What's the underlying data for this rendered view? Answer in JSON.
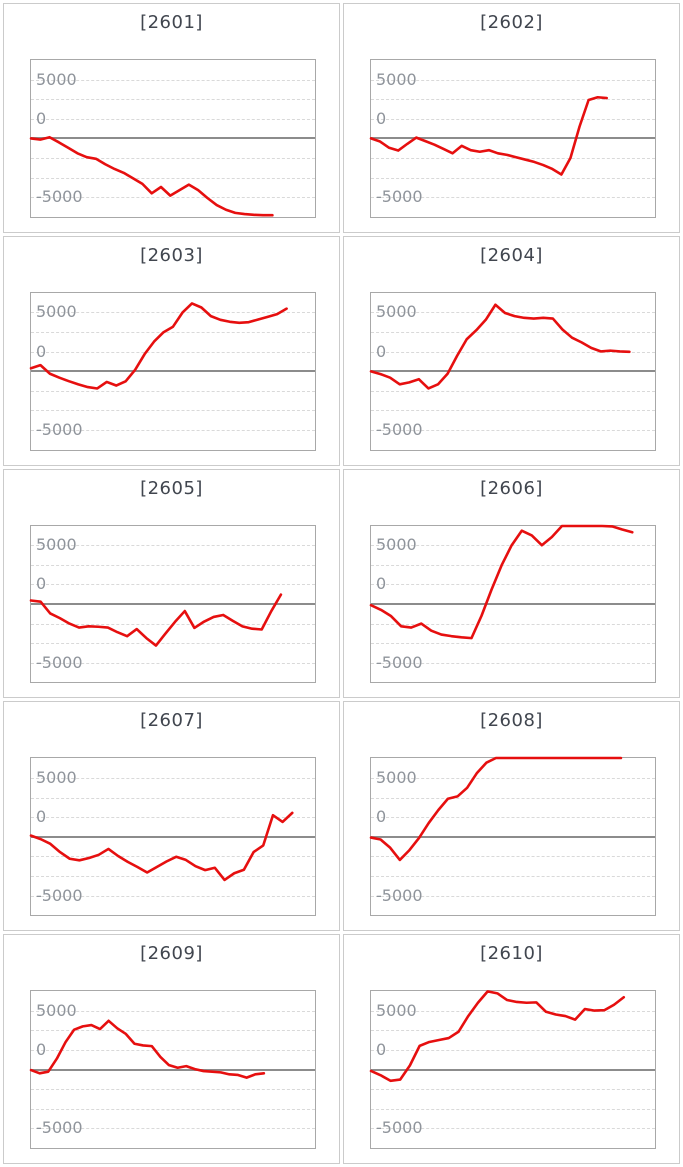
{
  "page": {
    "background": "#ffffff"
  },
  "style": {
    "line_color": "#e60f0f",
    "grid_color": "#d9d9d9",
    "zero_line_color": "#8c8c8c",
    "plot_border_color": "#a8a8a8",
    "panel_border_color": "#cbcbcb",
    "title_color": "#41464f",
    "axis_label_color": "#8f949b"
  },
  "axis": {
    "ylabels": [
      "5000",
      "0",
      "-5000"
    ],
    "ymax": 10000,
    "ymin": -10000,
    "grid_interval": 2500,
    "zero_value": 0,
    "grid": "horizontal-dashed",
    "legend": "none"
  },
  "chart_data": [
    {
      "type": "line",
      "title": "[2601]",
      "machine_no": "2601",
      "x_end_frac": 0.85,
      "values": [
        0,
        -150,
        150,
        -500,
        -1200,
        -1900,
        -2400,
        -2600,
        -3300,
        -3900,
        -4400,
        -5100,
        -5800,
        -7000,
        -6200,
        -7300,
        -6600,
        -5900,
        -6600,
        -7600,
        -8500,
        -9100,
        -9500,
        -9650,
        -9750,
        -9800,
        -9800
      ]
    },
    {
      "type": "line",
      "title": "[2602]",
      "machine_no": "2602",
      "x_end_frac": 0.83,
      "values": [
        0,
        -400,
        -1200,
        -1550,
        -700,
        100,
        -350,
        -800,
        -1350,
        -1900,
        -950,
        -1500,
        -1700,
        -1500,
        -1900,
        -2100,
        -2400,
        -2700,
        -3000,
        -3400,
        -3900,
        -4600,
        -2500,
        1500,
        4900,
        5250,
        5150
      ]
    },
    {
      "type": "line",
      "title": "[2603]",
      "machine_no": "2603",
      "x_end_frac": 0.9,
      "values": [
        400,
        800,
        -300,
        -800,
        -1250,
        -1650,
        -2000,
        -2180,
        -1340,
        -1800,
        -1260,
        200,
        2200,
        3800,
        5000,
        5700,
        7500,
        8670,
        8150,
        7050,
        6580,
        6330,
        6200,
        6280,
        6620,
        6950,
        7300,
        8000
      ]
    },
    {
      "type": "line",
      "title": "[2604]",
      "machine_no": "2604",
      "x_end_frac": 0.91,
      "values": [
        0,
        -350,
        -800,
        -1650,
        -1400,
        -1000,
        -2180,
        -1650,
        -300,
        2000,
        4100,
        5250,
        6600,
        8500,
        7450,
        7050,
        6830,
        6740,
        6830,
        6740,
        5350,
        4300,
        3700,
        3000,
        2550,
        2650,
        2550,
        2500
      ]
    },
    {
      "type": "line",
      "title": "[2605]",
      "machine_no": "2605",
      "x_end_frac": 0.88,
      "values": [
        500,
        350,
        -1150,
        -1750,
        -2450,
        -2950,
        -2800,
        -2850,
        -2950,
        -3550,
        -4050,
        -3150,
        -4300,
        -5250,
        -3700,
        -2200,
        -850,
        -3000,
        -2200,
        -1600,
        -1350,
        -2100,
        -2800,
        -3100,
        -3200,
        -850,
        1250
      ]
    },
    {
      "type": "line",
      "title": "[2606]",
      "machine_no": "2606",
      "x_end_frac": 0.92,
      "values": [
        -100,
        -700,
        -1500,
        -2800,
        -2950,
        -2450,
        -3350,
        -3850,
        -4050,
        -4200,
        -4300,
        -1450,
        1900,
        5000,
        7550,
        9400,
        8800,
        7550,
        8600,
        10000,
        10000,
        10000,
        10000,
        10000,
        9950,
        9550,
        9200
      ]
    },
    {
      "type": "line",
      "title": "[2607]",
      "machine_no": "2607",
      "x_end_frac": 0.92,
      "values": [
        100,
        -350,
        -950,
        -2000,
        -2850,
        -3050,
        -2750,
        -2350,
        -1600,
        -2500,
        -3250,
        -3900,
        -4600,
        -3900,
        -3200,
        -2600,
        -3000,
        -3800,
        -4300,
        -4000,
        -5550,
        -4700,
        -4250,
        -2000,
        -1150,
        2700,
        1850,
        3000
      ]
    },
    {
      "type": "line",
      "title": "[2608]",
      "machine_no": "2608",
      "x_end_frac": 0.88,
      "values": [
        -150,
        -400,
        -1450,
        -3000,
        -1750,
        -200,
        1700,
        3350,
        4800,
        5100,
        6200,
        8050,
        9400,
        10000,
        10000,
        10000,
        10000,
        10000,
        10000,
        10000,
        10000,
        10000,
        10000,
        10000,
        10000,
        10000,
        10000
      ]
    },
    {
      "type": "line",
      "title": "[2609]",
      "machine_no": "2609",
      "x_end_frac": 0.82,
      "values": [
        -80,
        -500,
        -290,
        1380,
        3470,
        5070,
        5490,
        5660,
        5150,
        6200,
        5240,
        4520,
        3270,
        3060,
        2970,
        1590,
        540,
        210,
        420,
        40,
        -210,
        -290,
        -380,
        -630,
        -710,
        -1050,
        -630,
        -500
      ]
    },
    {
      "type": "line",
      "title": "[2610]",
      "machine_no": "2610",
      "x_end_frac": 0.89,
      "values": [
        -200,
        -750,
        -1450,
        -1300,
        500,
        3000,
        3500,
        3750,
        4000,
        4800,
        6800,
        8500,
        9950,
        9700,
        8850,
        8600,
        8500,
        8550,
        7350,
        7000,
        6800,
        6350,
        7700,
        7500,
        7550,
        8250,
        9200
      ]
    }
  ]
}
